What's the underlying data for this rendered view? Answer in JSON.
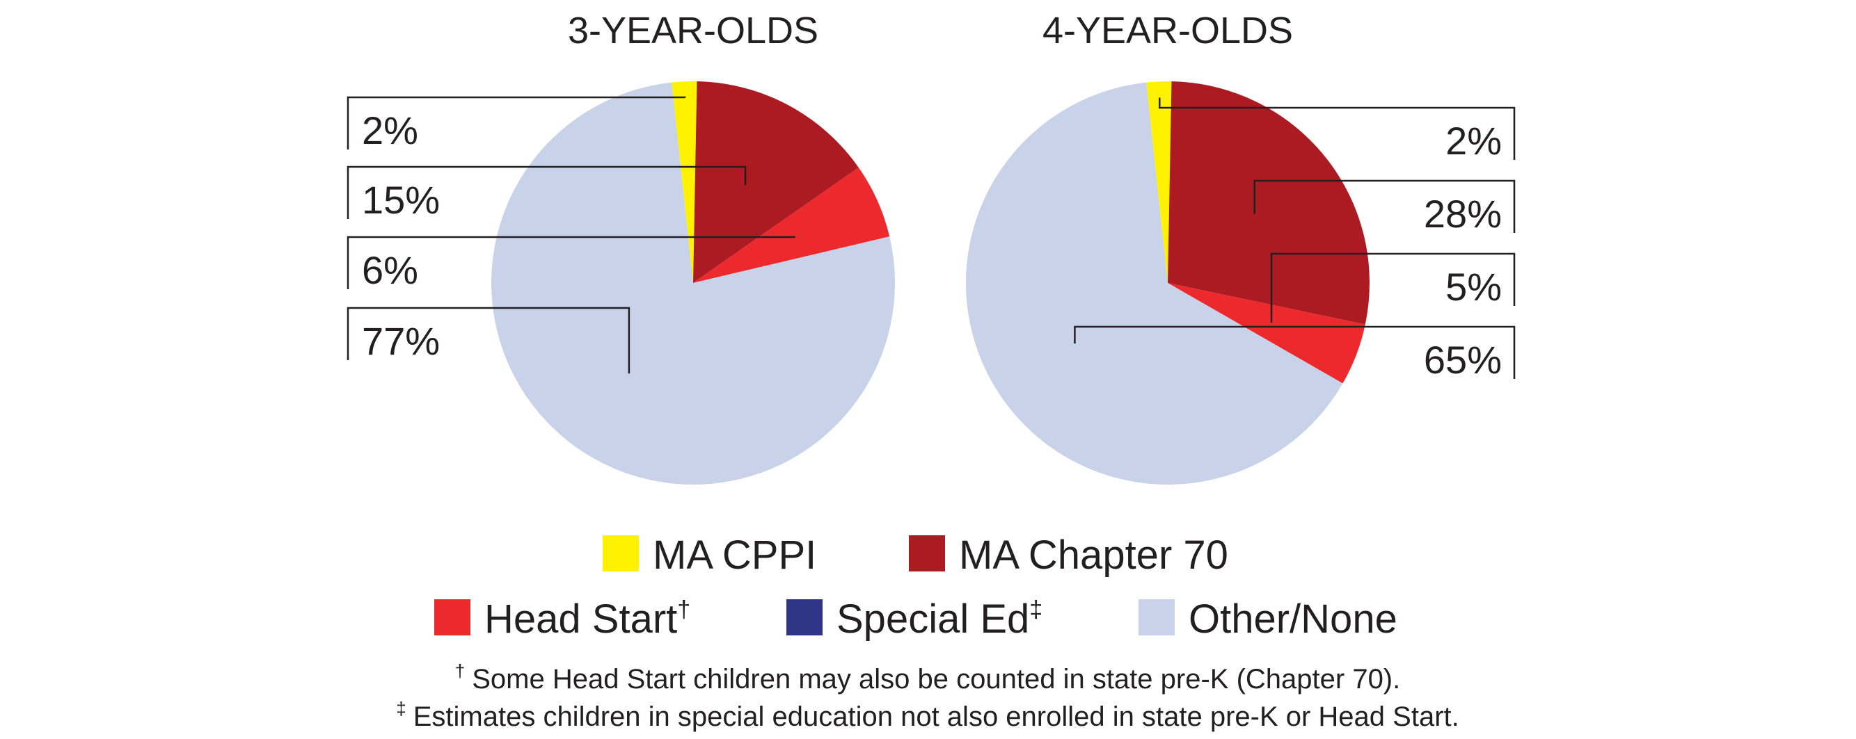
{
  "chart_data": [
    {
      "type": "pie",
      "title": "3-YEAR-OLDS",
      "slices": [
        {
          "name": "MA CPPI",
          "value": 2,
          "label": "2%",
          "color": "#fff200"
        },
        {
          "name": "MA Chapter 70",
          "value": 15,
          "label": "15%",
          "color": "#ac1a22"
        },
        {
          "name": "Head Start",
          "value": 6,
          "label": "6%",
          "color": "#ec2a2e"
        },
        {
          "name": "Other/None",
          "value": 77,
          "label": "77%",
          "color": "#c8d3ea"
        }
      ]
    },
    {
      "type": "pie",
      "title": "4-YEAR-OLDS",
      "slices": [
        {
          "name": "MA CPPI",
          "value": 2,
          "label": "2%",
          "color": "#fff200"
        },
        {
          "name": "MA Chapter 70",
          "value": 28,
          "label": "28%",
          "color": "#ac1a22"
        },
        {
          "name": "Head Start",
          "value": 5,
          "label": "5%",
          "color": "#ec2a2e"
        },
        {
          "name": "Other/None",
          "value": 65,
          "label": "65%",
          "color": "#c8d3ea"
        }
      ]
    }
  ],
  "legend": [
    {
      "name": "MA CPPI",
      "sup": "",
      "color": "#fff200"
    },
    {
      "name": "MA Chapter 70",
      "sup": "",
      "color": "#ac1a22"
    },
    {
      "name": "Head Start",
      "sup": "†",
      "color": "#ec2a2e"
    },
    {
      "name": "Special Ed",
      "sup": "‡",
      "color": "#2e3585"
    },
    {
      "name": "Other/None",
      "sup": "",
      "color": "#c8d3ea"
    }
  ],
  "notes": [
    {
      "symbol": "†",
      "text": "Some Head Start children may also be counted in state pre-K (Chapter 70)."
    },
    {
      "symbol": "‡",
      "text": "Estimates children in special education not also enrolled in state pre-K or Head Start."
    }
  ]
}
